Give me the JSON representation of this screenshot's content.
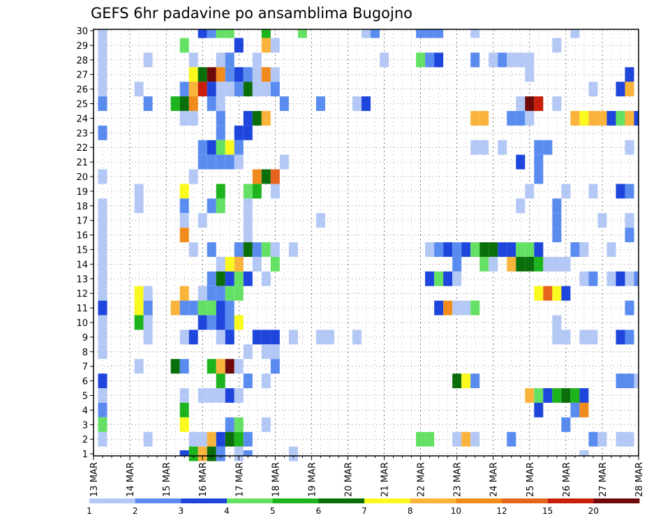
{
  "chart_data": {
    "type": "heatmap",
    "title": "GEFS 6hr padavine po ansamblima Bugojno",
    "xlabel": "",
    "ylabel": "",
    "x_tick_labels": [
      "13 MAR",
      "14 MAR",
      "15 MAR",
      "16 MAR",
      "17 MAR",
      "18 MAR",
      "19 MAR",
      "20 MAR",
      "21 MAR",
      "22 MAR",
      "23 MAR",
      "24 MAR",
      "25 MAR",
      "26 MAR",
      "27 MAR",
      "28 MAR"
    ],
    "y_tick_labels": [
      "1",
      "2",
      "3",
      "4",
      "5",
      "6",
      "7",
      "8",
      "9",
      "10",
      "11",
      "12",
      "13",
      "14",
      "15",
      "16",
      "17",
      "18",
      "19",
      "20",
      "21",
      "22",
      "23",
      "24",
      "25",
      "26",
      "27",
      "28",
      "29",
      "30"
    ],
    "time_steps_6h": 61,
    "members": 30,
    "grid": true,
    "legend_position": "bottom",
    "colorbar": {
      "labels": [
        "1",
        "2",
        "3",
        "4",
        "5",
        "6",
        "7",
        "8",
        "10",
        "12",
        "15",
        "20"
      ],
      "colors": [
        "#b4c8f5",
        "#5a8cf0",
        "#1e46dc",
        "#64e164",
        "#1eb41e",
        "#0a6e0a",
        "#fafa1e",
        "#fab43c",
        "#f08c1e",
        "#e6641e",
        "#c81e0a",
        "#6e0a0a"
      ]
    },
    "cells": [
      [
        30,
        1,
        0
      ],
      [
        30,
        12,
        2
      ],
      [
        30,
        13,
        1
      ],
      [
        30,
        14,
        3
      ],
      [
        30,
        15,
        3
      ],
      [
        30,
        19,
        4
      ],
      [
        30,
        23,
        3
      ],
      [
        30,
        30,
        0
      ],
      [
        30,
        31,
        1
      ],
      [
        30,
        36,
        1
      ],
      [
        30,
        37,
        1
      ],
      [
        30,
        38,
        1
      ],
      [
        30,
        42,
        0
      ],
      [
        30,
        53,
        0
      ],
      [
        29,
        1,
        0
      ],
      [
        29,
        10,
        3
      ],
      [
        29,
        16,
        2
      ],
      [
        29,
        19,
        7
      ],
      [
        29,
        20,
        0
      ],
      [
        29,
        51,
        0
      ],
      [
        28,
        1,
        0
      ],
      [
        28,
        6,
        0
      ],
      [
        28,
        11,
        0
      ],
      [
        28,
        14,
        0
      ],
      [
        28,
        15,
        1
      ],
      [
        28,
        18,
        0
      ],
      [
        28,
        32,
        0
      ],
      [
        28,
        36,
        3
      ],
      [
        28,
        37,
        1
      ],
      [
        28,
        38,
        2
      ],
      [
        28,
        42,
        1
      ],
      [
        28,
        44,
        0
      ],
      [
        28,
        45,
        1
      ],
      [
        28,
        46,
        0
      ],
      [
        28,
        47,
        0
      ],
      [
        28,
        48,
        0
      ],
      [
        27,
        1,
        0
      ],
      [
        27,
        11,
        6
      ],
      [
        27,
        12,
        5
      ],
      [
        27,
        13,
        11
      ],
      [
        27,
        14,
        8
      ],
      [
        27,
        15,
        1
      ],
      [
        27,
        16,
        2
      ],
      [
        27,
        17,
        1
      ],
      [
        27,
        18,
        0
      ],
      [
        27,
        19,
        8
      ],
      [
        27,
        20,
        0
      ],
      [
        27,
        48,
        0
      ],
      [
        27,
        59,
        2
      ],
      [
        26,
        1,
        0
      ],
      [
        26,
        5,
        0
      ],
      [
        26,
        10,
        1
      ],
      [
        26,
        11,
        7
      ],
      [
        26,
        12,
        10
      ],
      [
        26,
        13,
        2
      ],
      [
        26,
        14,
        0
      ],
      [
        26,
        15,
        0
      ],
      [
        26,
        16,
        1
      ],
      [
        26,
        17,
        5
      ],
      [
        26,
        18,
        0
      ],
      [
        26,
        19,
        0
      ],
      [
        26,
        20,
        1
      ],
      [
        26,
        55,
        0
      ],
      [
        26,
        58,
        2
      ],
      [
        26,
        59,
        7
      ],
      [
        25,
        1,
        1
      ],
      [
        25,
        6,
        1
      ],
      [
        25,
        9,
        4
      ],
      [
        25,
        10,
        5
      ],
      [
        25,
        11,
        8
      ],
      [
        25,
        13,
        1
      ],
      [
        25,
        14,
        0
      ],
      [
        25,
        21,
        1
      ],
      [
        25,
        25,
        1
      ],
      [
        25,
        29,
        0
      ],
      [
        25,
        30,
        2
      ],
      [
        25,
        47,
        0
      ],
      [
        25,
        48,
        11
      ],
      [
        25,
        49,
        10
      ],
      [
        25,
        51,
        0
      ],
      [
        24,
        10,
        0
      ],
      [
        24,
        11,
        0
      ],
      [
        24,
        14,
        1
      ],
      [
        24,
        17,
        2
      ],
      [
        24,
        18,
        5
      ],
      [
        24,
        19,
        7
      ],
      [
        24,
        42,
        7
      ],
      [
        24,
        43,
        7
      ],
      [
        24,
        46,
        1
      ],
      [
        24,
        47,
        1
      ],
      [
        24,
        48,
        0
      ],
      [
        24,
        53,
        7
      ],
      [
        24,
        54,
        6
      ],
      [
        24,
        55,
        7
      ],
      [
        24,
        56,
        7
      ],
      [
        24,
        57,
        2
      ],
      [
        24,
        58,
        3
      ],
      [
        24,
        59,
        7
      ],
      [
        24,
        60,
        2
      ],
      [
        23,
        1,
        1
      ],
      [
        23,
        14,
        1
      ],
      [
        23,
        16,
        2
      ],
      [
        23,
        17,
        2
      ],
      [
        22,
        12,
        1
      ],
      [
        22,
        13,
        2
      ],
      [
        22,
        14,
        3
      ],
      [
        22,
        15,
        6
      ],
      [
        22,
        16,
        1
      ],
      [
        22,
        42,
        0
      ],
      [
        22,
        43,
        0
      ],
      [
        22,
        45,
        0
      ],
      [
        22,
        49,
        1
      ],
      [
        22,
        50,
        1
      ],
      [
        22,
        59,
        0
      ],
      [
        21,
        12,
        1
      ],
      [
        21,
        13,
        1
      ],
      [
        21,
        14,
        1
      ],
      [
        21,
        15,
        1
      ],
      [
        21,
        16,
        0
      ],
      [
        21,
        21,
        0
      ],
      [
        21,
        47,
        2
      ],
      [
        21,
        49,
        1
      ],
      [
        20,
        1,
        0
      ],
      [
        20,
        11,
        0
      ],
      [
        20,
        18,
        8
      ],
      [
        20,
        19,
        5
      ],
      [
        20,
        20,
        9
      ],
      [
        20,
        49,
        1
      ],
      [
        19,
        5,
        0
      ],
      [
        19,
        10,
        6
      ],
      [
        19,
        14,
        4
      ],
      [
        19,
        17,
        3
      ],
      [
        19,
        18,
        4
      ],
      [
        19,
        20,
        0
      ],
      [
        19,
        48,
        0
      ],
      [
        19,
        52,
        0
      ],
      [
        19,
        55,
        0
      ],
      [
        19,
        58,
        2
      ],
      [
        19,
        59,
        1
      ],
      [
        18,
        1,
        0
      ],
      [
        18,
        5,
        0
      ],
      [
        18,
        10,
        1
      ],
      [
        18,
        13,
        1
      ],
      [
        18,
        14,
        3
      ],
      [
        18,
        17,
        0
      ],
      [
        18,
        47,
        0
      ],
      [
        18,
        51,
        1
      ],
      [
        17,
        1,
        0
      ],
      [
        17,
        10,
        0
      ],
      [
        17,
        12,
        0
      ],
      [
        17,
        17,
        0
      ],
      [
        17,
        25,
        0
      ],
      [
        17,
        51,
        1
      ],
      [
        17,
        56,
        0
      ],
      [
        17,
        59,
        0
      ],
      [
        16,
        1,
        0
      ],
      [
        16,
        10,
        8
      ],
      [
        16,
        17,
        0
      ],
      [
        16,
        51,
        1
      ],
      [
        16,
        59,
        1
      ],
      [
        15,
        1,
        0
      ],
      [
        15,
        11,
        0
      ],
      [
        15,
        13,
        1
      ],
      [
        15,
        16,
        1
      ],
      [
        15,
        17,
        5
      ],
      [
        15,
        18,
        1
      ],
      [
        15,
        19,
        3
      ],
      [
        15,
        20,
        0
      ],
      [
        15,
        22,
        0
      ],
      [
        15,
        37,
        0
      ],
      [
        15,
        38,
        1
      ],
      [
        15,
        39,
        2
      ],
      [
        15,
        40,
        1
      ],
      [
        15,
        41,
        2
      ],
      [
        15,
        42,
        3
      ],
      [
        15,
        43,
        5
      ],
      [
        15,
        44,
        5
      ],
      [
        15,
        45,
        2
      ],
      [
        15,
        46,
        2
      ],
      [
        15,
        47,
        3
      ],
      [
        15,
        48,
        3
      ],
      [
        15,
        49,
        2
      ],
      [
        15,
        53,
        1
      ],
      [
        15,
        54,
        0
      ],
      [
        15,
        57,
        0
      ],
      [
        14,
        1,
        0
      ],
      [
        14,
        14,
        0
      ],
      [
        14,
        15,
        6
      ],
      [
        14,
        16,
        7
      ],
      [
        14,
        18,
        0
      ],
      [
        14,
        20,
        3
      ],
      [
        14,
        40,
        1
      ],
      [
        14,
        43,
        3
      ],
      [
        14,
        44,
        0
      ],
      [
        14,
        46,
        7
      ],
      [
        14,
        47,
        5
      ],
      [
        14,
        48,
        5
      ],
      [
        14,
        49,
        4
      ],
      [
        14,
        50,
        0
      ],
      [
        14,
        51,
        0
      ],
      [
        14,
        52,
        0
      ],
      [
        13,
        1,
        0
      ],
      [
        13,
        13,
        1
      ],
      [
        13,
        14,
        5
      ],
      [
        13,
        15,
        2
      ],
      [
        13,
        16,
        3
      ],
      [
        13,
        17,
        2
      ],
      [
        13,
        19,
        0
      ],
      [
        13,
        37,
        2
      ],
      [
        13,
        38,
        3
      ],
      [
        13,
        39,
        2
      ],
      [
        13,
        40,
        0
      ],
      [
        13,
        54,
        0
      ],
      [
        13,
        55,
        1
      ],
      [
        13,
        57,
        0
      ],
      [
        13,
        58,
        2
      ],
      [
        13,
        59,
        0
      ],
      [
        13,
        60,
        1
      ],
      [
        12,
        1,
        0
      ],
      [
        12,
        5,
        6
      ],
      [
        12,
        6,
        0
      ],
      [
        12,
        10,
        7
      ],
      [
        12,
        12,
        0
      ],
      [
        12,
        13,
        1
      ],
      [
        12,
        14,
        1
      ],
      [
        12,
        15,
        3
      ],
      [
        12,
        16,
        3
      ],
      [
        12,
        49,
        6
      ],
      [
        12,
        50,
        9
      ],
      [
        12,
        51,
        6
      ],
      [
        12,
        52,
        2
      ],
      [
        11,
        1,
        2
      ],
      [
        11,
        5,
        6
      ],
      [
        11,
        6,
        1
      ],
      [
        11,
        9,
        7
      ],
      [
        11,
        10,
        1
      ],
      [
        11,
        11,
        1
      ],
      [
        11,
        12,
        3
      ],
      [
        11,
        13,
        3
      ],
      [
        11,
        14,
        2
      ],
      [
        11,
        15,
        1
      ],
      [
        11,
        38,
        2
      ],
      [
        11,
        39,
        8
      ],
      [
        11,
        40,
        0
      ],
      [
        11,
        41,
        0
      ],
      [
        11,
        42,
        3
      ],
      [
        11,
        59,
        1
      ],
      [
        10,
        1,
        0
      ],
      [
        10,
        5,
        4
      ],
      [
        10,
        6,
        0
      ],
      [
        10,
        12,
        2
      ],
      [
        10,
        13,
        1
      ],
      [
        10,
        14,
        2
      ],
      [
        10,
        15,
        1
      ],
      [
        10,
        16,
        6
      ],
      [
        10,
        51,
        0
      ],
      [
        9,
        1,
        0
      ],
      [
        9,
        6,
        0
      ],
      [
        9,
        10,
        0
      ],
      [
        9,
        11,
        2
      ],
      [
        9,
        14,
        0
      ],
      [
        9,
        15,
        2
      ],
      [
        9,
        18,
        2
      ],
      [
        9,
        19,
        2
      ],
      [
        9,
        20,
        2
      ],
      [
        9,
        22,
        0
      ],
      [
        9,
        25,
        0
      ],
      [
        9,
        26,
        0
      ],
      [
        9,
        29,
        0
      ],
      [
        9,
        51,
        0
      ],
      [
        9,
        52,
        0
      ],
      [
        9,
        54,
        0
      ],
      [
        9,
        55,
        0
      ],
      [
        9,
        58,
        2
      ],
      [
        9,
        59,
        1
      ],
      [
        8,
        1,
        0
      ],
      [
        8,
        17,
        0
      ],
      [
        8,
        19,
        0
      ],
      [
        8,
        20,
        0
      ],
      [
        7,
        5,
        0
      ],
      [
        7,
        9,
        5
      ],
      [
        7,
        10,
        1
      ],
      [
        7,
        13,
        4
      ],
      [
        7,
        14,
        7
      ],
      [
        7,
        15,
        11
      ],
      [
        7,
        16,
        0
      ],
      [
        7,
        20,
        1
      ],
      [
        6,
        1,
        2
      ],
      [
        6,
        14,
        4
      ],
      [
        6,
        17,
        1
      ],
      [
        6,
        19,
        0
      ],
      [
        6,
        40,
        5
      ],
      [
        6,
        41,
        6
      ],
      [
        6,
        42,
        1
      ],
      [
        6,
        58,
        1
      ],
      [
        6,
        59,
        1
      ],
      [
        6,
        60,
        0
      ],
      [
        5,
        1,
        0
      ],
      [
        5,
        10,
        0
      ],
      [
        5,
        12,
        0
      ],
      [
        5,
        13,
        0
      ],
      [
        5,
        14,
        0
      ],
      [
        5,
        15,
        2
      ],
      [
        5,
        16,
        0
      ],
      [
        5,
        48,
        7
      ],
      [
        5,
        49,
        3
      ],
      [
        5,
        50,
        2
      ],
      [
        5,
        51,
        4
      ],
      [
        5,
        52,
        5
      ],
      [
        5,
        53,
        4
      ],
      [
        5,
        54,
        2
      ],
      [
        4,
        1,
        1
      ],
      [
        4,
        10,
        4
      ],
      [
        4,
        49,
        2
      ],
      [
        4,
        53,
        1
      ],
      [
        4,
        54,
        8
      ],
      [
        3,
        1,
        3
      ],
      [
        3,
        10,
        6
      ],
      [
        3,
        15,
        1
      ],
      [
        3,
        16,
        3
      ],
      [
        3,
        19,
        0
      ],
      [
        3,
        52,
        1
      ],
      [
        2,
        1,
        0
      ],
      [
        2,
        6,
        0
      ],
      [
        2,
        11,
        0
      ],
      [
        2,
        12,
        0
      ],
      [
        2,
        13,
        7
      ],
      [
        2,
        14,
        2
      ],
      [
        2,
        15,
        5
      ],
      [
        2,
        16,
        4
      ],
      [
        2,
        17,
        1
      ],
      [
        2,
        36,
        3
      ],
      [
        2,
        37,
        3
      ],
      [
        2,
        40,
        0
      ],
      [
        2,
        41,
        7
      ],
      [
        2,
        42,
        0
      ],
      [
        2,
        46,
        1
      ],
      [
        2,
        55,
        1
      ],
      [
        2,
        56,
        0
      ],
      [
        2,
        58,
        0
      ],
      [
        2,
        59,
        0
      ],
      [
        1,
        11,
        4
      ],
      [
        1,
        12,
        7
      ],
      [
        1,
        13,
        5
      ],
      [
        1,
        14,
        1
      ],
      [
        1,
        16,
        0
      ],
      [
        1,
        22,
        0
      ],
      [
        0,
        10,
        2
      ],
      [
        0,
        17,
        1
      ],
      [
        0,
        54,
        0
      ]
    ]
  }
}
